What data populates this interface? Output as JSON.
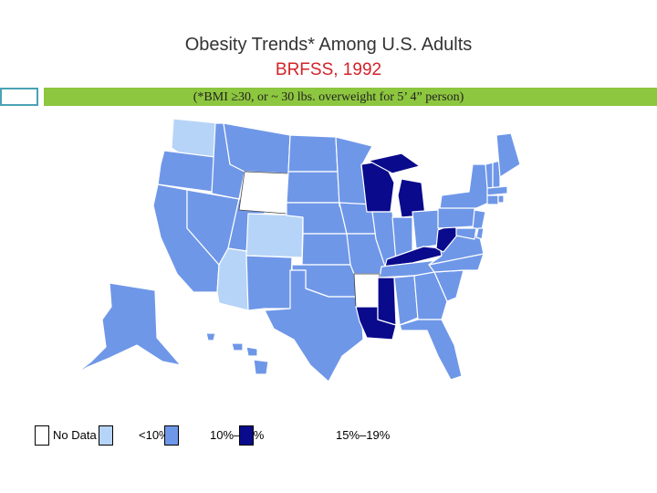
{
  "header": {
    "title": "Obesity Trends* Among U.S. Adults",
    "subtitle": "BRFSS, 1992",
    "note": "(*BMI ≥30, or ~ 30 lbs. overweight for 5’ 4” person)"
  },
  "legend": {
    "items": [
      {
        "label": "No Data",
        "color": "#ffffff"
      },
      {
        "label": "<10%",
        "color": "#b6d4f7"
      },
      {
        "label": "10%–14%",
        "color": "#6f97e8"
      },
      {
        "label": "15%–19%",
        "color": "#0a0a8c"
      }
    ]
  },
  "colors": {
    "no_data": "#ffffff",
    "lt10": "#b6d4f7",
    "p10_14": "#6f97e8",
    "p15_19": "#0a0a8c",
    "title_red": "#d2232a",
    "accent_green": "#8dc63f",
    "accent_teal": "#4aa3b5"
  },
  "map": {
    "no_data_states": [
      "WY",
      "AR"
    ],
    "lt10_states": [
      "WA",
      "CO",
      "AZ"
    ],
    "p15_19_states": [
      "WI",
      "MI",
      "KY",
      "WV",
      "MS",
      "LA"
    ]
  }
}
